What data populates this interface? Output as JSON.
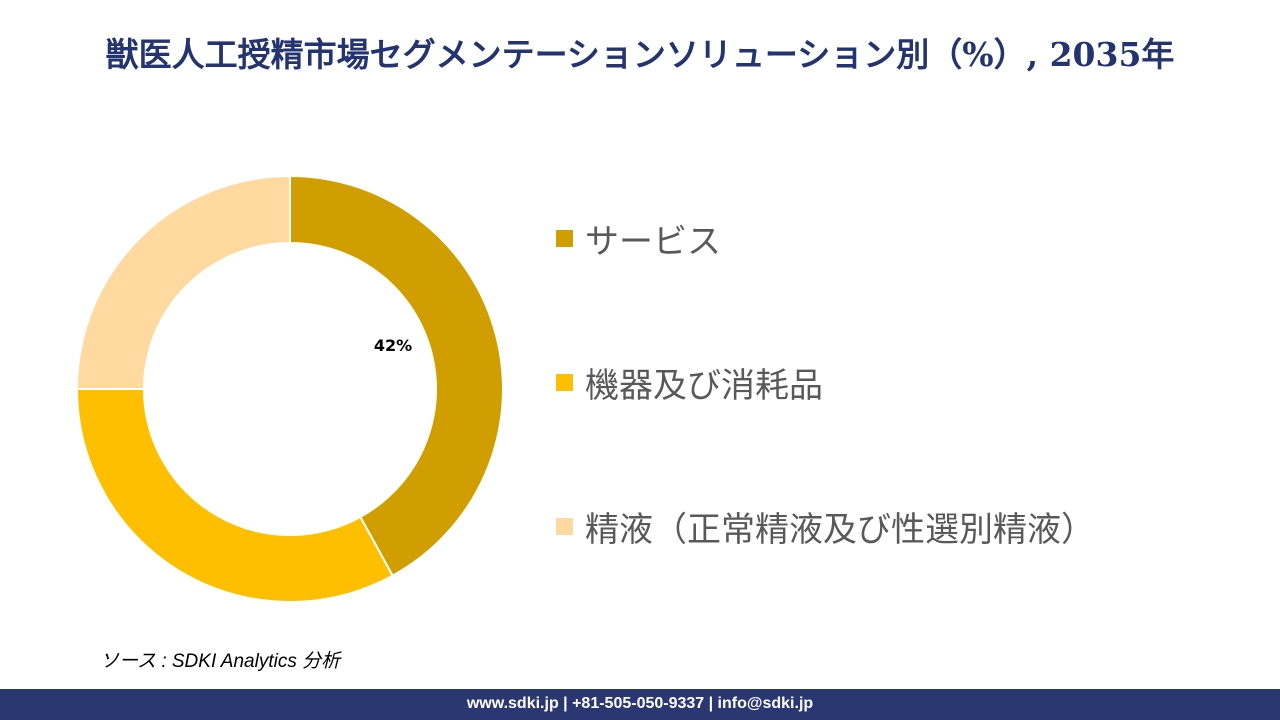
{
  "title": "獣医人工授精市場セグメンテーションソリューション別（%）, 2035年",
  "chart_data": {
    "type": "pie",
    "subtype": "donut",
    "title": "獣医人工授精市場セグメンテーションソリューション別（%）, 2035年",
    "categories": [
      "サービス",
      "機器及び消耗品",
      "精液（正常精液及び性選別精液）"
    ],
    "values": [
      42,
      33,
      25
    ],
    "colors": [
      "#D19E00",
      "#FDBF00",
      "#FFD9A0"
    ],
    "data_labels": [
      "42%",
      "",
      ""
    ],
    "legend_position": "right",
    "start_angle_deg": 0,
    "direction": "clockwise"
  },
  "legend": {
    "items": [
      {
        "label": "サービス",
        "color": "#D19E00"
      },
      {
        "label": "機器及び消耗品",
        "color": "#FDBF00"
      },
      {
        "label": "精液（正常精液及び性選別精液）",
        "color": "#FFD9A0"
      }
    ]
  },
  "source": "ソース : SDKI Analytics  分析",
  "footer": {
    "contact": "www.sdki.jp | +81-505-050-9337 | info@sdki.jp",
    "background": "#2a3770"
  }
}
